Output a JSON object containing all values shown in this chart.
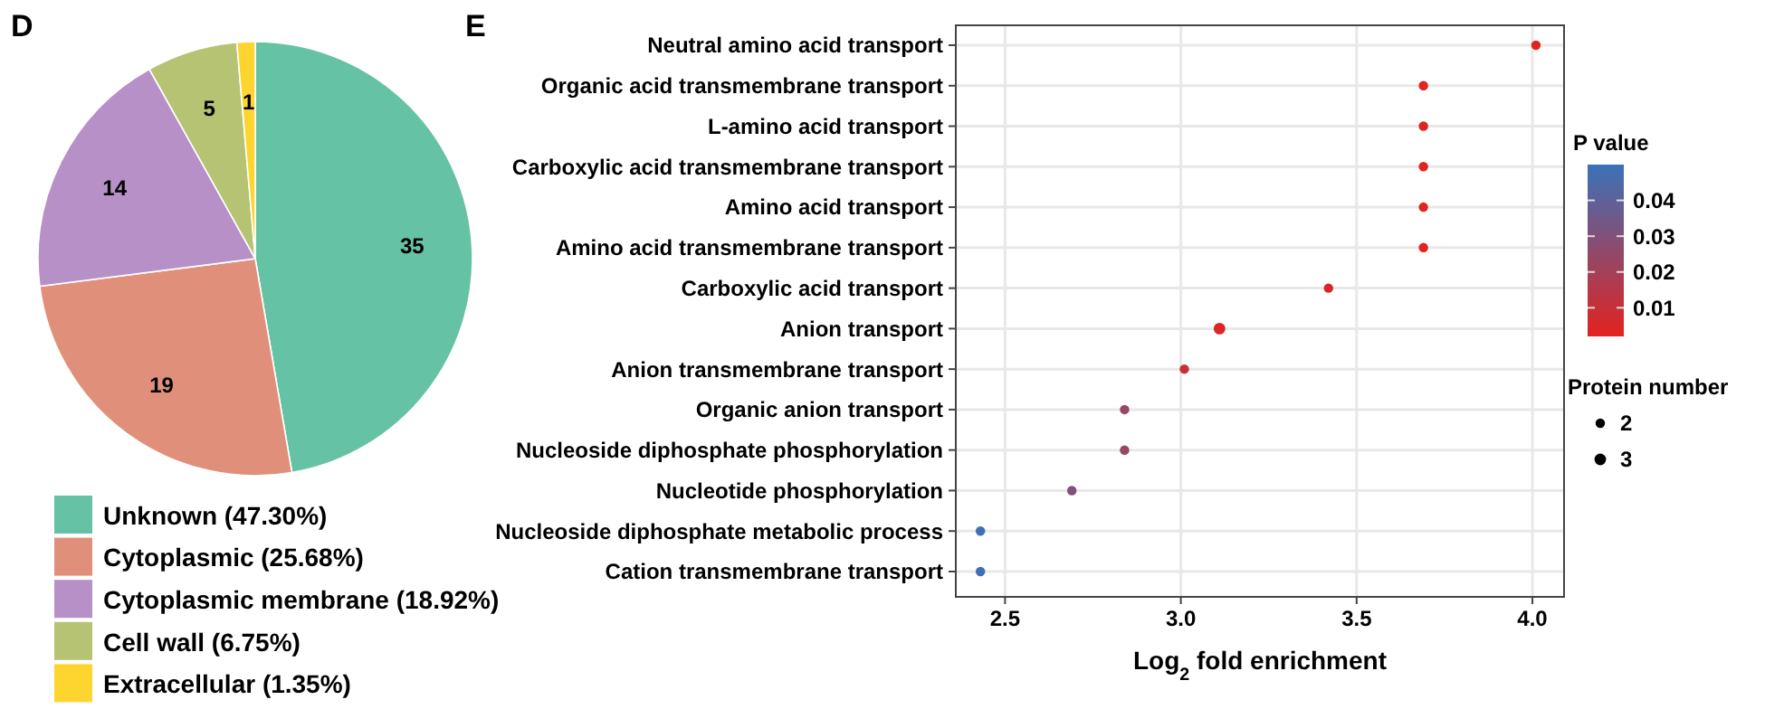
{
  "chart_data": [
    {
      "type": "pie",
      "title": "D",
      "categories": [
        "Unknown (47.30%)",
        "Cytoplasmic (25.68%)",
        "Cytoplasmic membrane (18.92%)",
        "Cell wall (6.75%)",
        "Extracellular (1.35%)"
      ],
      "values": [
        35,
        19,
        14,
        5,
        1
      ],
      "colors": [
        "#66c2a5",
        "#e0907a",
        "#b690c6",
        "#b5c373",
        "#fed52f"
      ],
      "data_labels": true,
      "legend": "bottom"
    },
    {
      "type": "bubble",
      "title": "E",
      "orientation": "horizontal",
      "categories": [
        "Neutral amino acid transport",
        "Organic acid transmembrane transport",
        "L-amino acid transport",
        "Carboxylic acid transmembrane transport",
        "Amino acid transport",
        "Amino acid transmembrane transport",
        "Carboxylic acid transport",
        "Anion transport",
        "Anion transmembrane transport",
        "Organic anion transport",
        "Nucleoside diphosphate phosphorylation",
        "Nucleotide phosphorylation",
        "Nucleoside diphosphate metabolic process",
        "Cation transmembrane transport"
      ],
      "values": [
        4.01,
        3.69,
        3.69,
        3.69,
        3.69,
        3.69,
        3.42,
        3.11,
        3.01,
        2.84,
        2.84,
        2.69,
        2.43,
        2.43
      ],
      "sizes": [
        2,
        2,
        2,
        2,
        2,
        2,
        2,
        3,
        2,
        2,
        2,
        2,
        2,
        2
      ],
      "cvalues": [
        0.003,
        0.003,
        0.003,
        0.003,
        0.003,
        0.003,
        0.004,
        0.004,
        0.012,
        0.024,
        0.024,
        0.03,
        0.048,
        0.048
      ],
      "size_legend": [
        2,
        3
      ],
      "legend_title": "Protein number",
      "clabel": "P value",
      "clim": [
        0.002,
        0.05
      ],
      "cticks": [
        0.01,
        0.02,
        0.03,
        0.04
      ],
      "xlim": [
        2.36,
        4.09
      ],
      "xticks": [
        {
          "value": 2.5,
          "label": "2.5"
        },
        {
          "value": 3,
          "label": "3.0"
        },
        {
          "value": 3.5,
          "label": "3.5"
        },
        {
          "value": 4,
          "label": "4.0"
        }
      ],
      "xlabel": "Log$_{2}$ fold enrichment",
      "grid": true
    }
  ]
}
